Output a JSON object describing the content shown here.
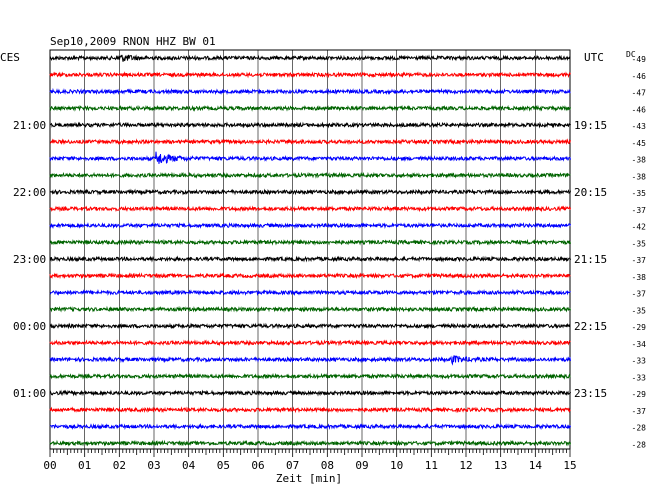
{
  "header": {
    "title": "Sep10,2009   RNON HHZ BW 01",
    "left_zone": "CES",
    "right_zone": "UTC",
    "dc_label": "DC"
  },
  "chart_data": {
    "type": "line",
    "title": "Sep10,2009   RNON HHZ BW 01",
    "xlabel": "Zeit [min]",
    "xlim": [
      0,
      15
    ],
    "x_ticks": [
      "00",
      "01",
      "02",
      "03",
      "04",
      "05",
      "06",
      "07",
      "08",
      "09",
      "10",
      "11",
      "12",
      "13",
      "14",
      "15"
    ],
    "grid": true,
    "trace_colors": [
      "#000000",
      "#ff0000",
      "#0000ff",
      "#006400"
    ],
    "left_time_labels": [
      "21:00",
      "22:00",
      "23:00",
      "00:00",
      "01:00"
    ],
    "right_time_labels": [
      "19:15",
      "20:15",
      "21:15",
      "22:15",
      "23:15"
    ],
    "time_label_every_n_traces": 4,
    "time_label_first_trace": 4,
    "dc_offsets": [
      "-49",
      "-46",
      "-47",
      "-46",
      "-43",
      "-45",
      "-38",
      "-38",
      "-35",
      "-37",
      "-42",
      "-35",
      "-37",
      "-38",
      "-37",
      "-35",
      "-29",
      "-34",
      "-33",
      "-33",
      "-29",
      "-37",
      "-28",
      "-28"
    ],
    "events": [
      {
        "trace": 6,
        "minute": 3.1,
        "amplitude": "large"
      },
      {
        "trace": 18,
        "minute": 11.6,
        "amplitude": "small"
      },
      {
        "trace": 0,
        "minute": 2.0,
        "amplitude": "small"
      }
    ]
  }
}
